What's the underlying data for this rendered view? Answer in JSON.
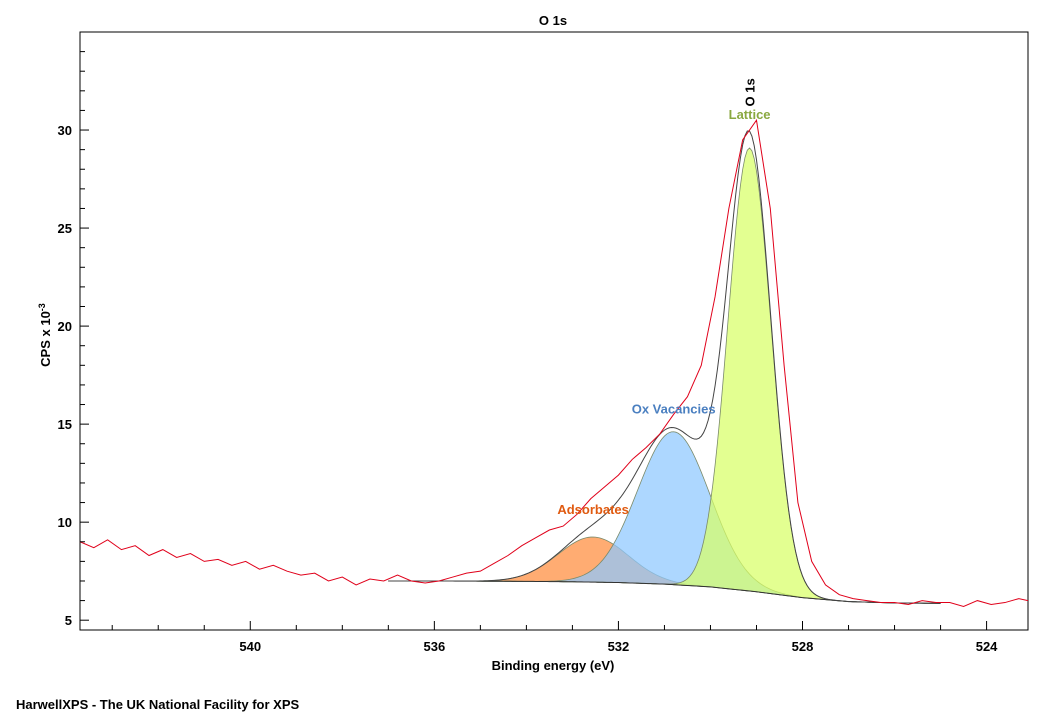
{
  "chart_data": {
    "type": "line",
    "title": "O 1s",
    "xlabel": "Binding energy (eV)",
    "ylabel": "CPS x 10",
    "ylabel_exponent": "-3",
    "xlim": [
      543.7,
      523.1
    ],
    "ylim": [
      4.5,
      35.0
    ],
    "x_reversed": true,
    "x_ticks": [
      540,
      536,
      532,
      528,
      524
    ],
    "y_ticks": [
      5,
      10,
      15,
      20,
      25,
      30
    ],
    "background": {
      "x": [
        537.0,
        536.0,
        535.0,
        534.0,
        533.0,
        532.0,
        531.0,
        530.0,
        529.0,
        528.0,
        527.0,
        526.0,
        525.0,
        523.1
      ],
      "y": [
        7.0,
        7.0,
        6.99,
        6.98,
        6.96,
        6.92,
        6.84,
        6.7,
        6.45,
        6.15,
        5.95,
        5.88,
        5.86,
        5.86
      ]
    },
    "components": [
      {
        "name": "Adsorbates",
        "center": 532.55,
        "height": 2.3,
        "fwhm": 1.8,
        "color": "#ff8c3c",
        "label_color": "#e05a10"
      },
      {
        "name": "Ox Vacancies",
        "center": 530.8,
        "height": 7.8,
        "fwhm": 1.85,
        "color": "#8ec8ff",
        "label_color": "#4a7fc0"
      },
      {
        "name": "Lattice",
        "center": 529.15,
        "height": 22.6,
        "fwhm": 1.1,
        "color": "#d8ff66",
        "label_color": "#8aa840"
      }
    ],
    "peak_label": "O 1s",
    "raw_data": {
      "x": [
        543.7,
        543.4,
        543.1,
        542.8,
        542.5,
        542.2,
        541.9,
        541.6,
        541.3,
        541.0,
        540.7,
        540.4,
        540.1,
        539.8,
        539.5,
        539.2,
        538.9,
        538.6,
        538.3,
        538.0,
        537.7,
        537.4,
        537.1,
        536.8,
        536.5,
        536.2,
        535.9,
        535.6,
        535.3,
        535.0,
        534.7,
        534.4,
        534.1,
        533.8,
        533.5,
        533.2,
        532.9,
        532.6,
        532.3,
        532.0,
        531.7,
        531.4,
        531.1,
        530.8,
        530.5,
        530.2,
        529.9,
        529.6,
        529.3,
        529.0,
        528.7,
        528.4,
        528.1,
        527.8,
        527.5,
        527.2,
        526.9,
        526.6,
        526.3,
        526.0,
        525.7,
        525.4,
        525.1,
        524.8,
        524.5,
        524.2,
        523.9,
        523.6,
        523.3,
        523.1
      ],
      "y": [
        9.0,
        8.7,
        9.1,
        8.6,
        8.8,
        8.3,
        8.6,
        8.2,
        8.4,
        8.0,
        8.1,
        7.8,
        8.0,
        7.6,
        7.8,
        7.5,
        7.3,
        7.4,
        7.0,
        7.2,
        6.8,
        7.1,
        7.0,
        7.3,
        7.0,
        6.9,
        7.0,
        7.2,
        7.4,
        7.5,
        7.9,
        8.3,
        8.8,
        9.2,
        9.6,
        9.8,
        10.4,
        11.2,
        11.8,
        12.4,
        13.2,
        13.8,
        14.5,
        15.5,
        16.4,
        18.0,
        21.5,
        26.0,
        29.5,
        30.5,
        26.0,
        18.0,
        11.0,
        8.0,
        6.8,
        6.3,
        6.1,
        6.0,
        5.9,
        5.9,
        5.8,
        6.0,
        5.9,
        5.9,
        5.7,
        6.0,
        5.8,
        5.9,
        6.1,
        6.0
      ]
    }
  },
  "footer": {
    "text": "HarwellXPS - The UK National Facility for XPS"
  }
}
